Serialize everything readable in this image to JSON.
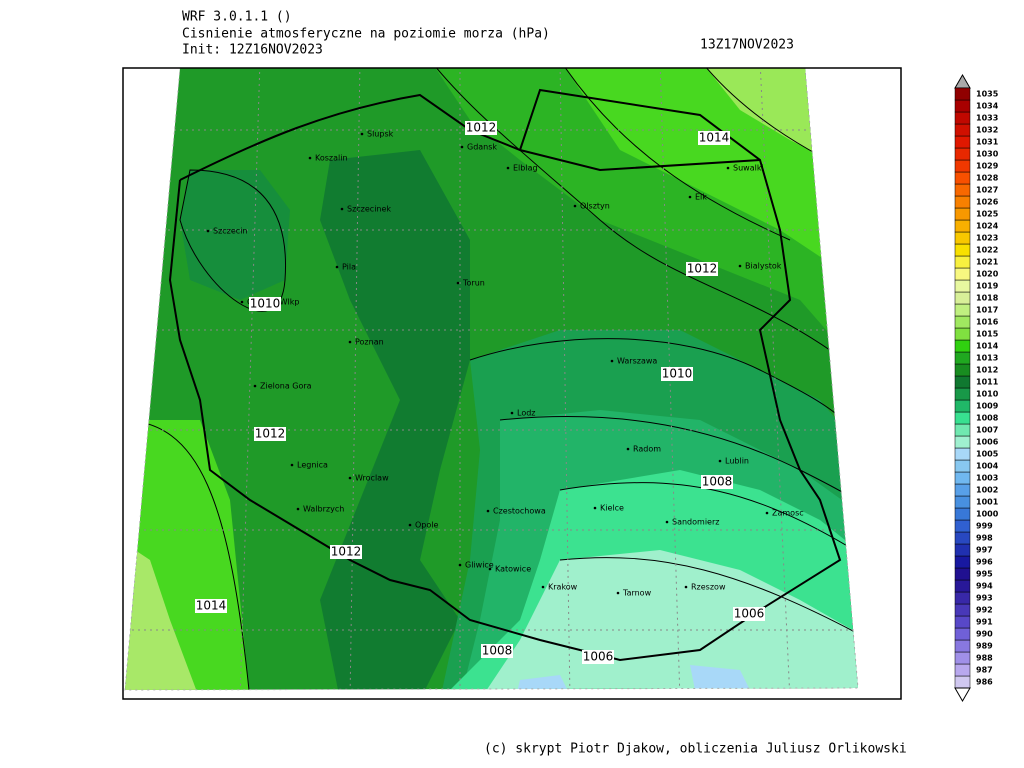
{
  "header": {
    "model": "WRF 3.0.1.1 ()",
    "title": "Cisnienie atmosferyczne na poziomie morza (hPa)",
    "init": "Init: 12Z16NOV2023",
    "valid": "13Z17NOV2023"
  },
  "footer": "(c) skrypt Piotr Djakow, obliczenia Juliusz Orlikowski",
  "cities": [
    "Slupsk",
    "Gdansk",
    "Koszalin",
    "Elblag",
    "Suwalki",
    "Olsztyn",
    "Elk",
    "Szczecinek",
    "Szczecin",
    "Bialystok",
    "Pila",
    "Torun",
    "Gorzow Wlkp",
    "Poznan",
    "Warszawa",
    "Zielona Gora",
    "Lodz",
    "Radom",
    "Lublin",
    "Legnica",
    "Wroclaw",
    "Czestochowa",
    "Kielce",
    "Zamosc",
    "Walbrzych",
    "Opole",
    "Sandomierz",
    "Gliwice",
    "Katowice",
    "Krakow",
    "Tarnow",
    "Rzeszow"
  ],
  "contour_labels": [
    1012,
    1014,
    1012,
    1010,
    1010,
    1012,
    1008,
    1012,
    1014,
    1006,
    1008,
    1006
  ],
  "colorbar": {
    "levels": [
      986,
      987,
      988,
      989,
      990,
      991,
      992,
      993,
      994,
      995,
      996,
      997,
      998,
      999,
      1000,
      1001,
      1002,
      1003,
      1004,
      1005,
      1006,
      1007,
      1008,
      1009,
      1010,
      1011,
      1012,
      1013,
      1014,
      1015,
      1016,
      1017,
      1018,
      1019,
      1020,
      1021,
      1022,
      1023,
      1024,
      1025,
      1026,
      1027,
      1028,
      1029,
      1030,
      1031,
      1032,
      1033,
      1034,
      1035
    ],
    "colors": [
      "#d0c8f0",
      "#b8a8ee",
      "#a090e8",
      "#8878e0",
      "#7060d8",
      "#5848c8",
      "#4838b8",
      "#3828a8",
      "#281898",
      "#201090",
      "#1818a0",
      "#2030b0",
      "#2848c0",
      "#3060d0",
      "#3878d8",
      "#4890e0",
      "#58a0e8",
      "#70b8f0",
      "#88c8f0",
      "#a8d8f8",
      "#a0f0d0",
      "#70e8b0",
      "#38e090",
      "#20b868",
      "#189848",
      "#107830",
      "#188c20",
      "#20a820",
      "#30d010",
      "#80e040",
      "#a0e860",
      "#c0f080",
      "#d8f098",
      "#e8f8a0",
      "#f8f880",
      "#f8f040",
      "#f8e000",
      "#f8c800",
      "#f8b000",
      "#f89800",
      "#f88000",
      "#f86800",
      "#f85000",
      "#f03800",
      "#e82800",
      "#e01800",
      "#d01000",
      "#c00800",
      "#a80000",
      "#900000"
    ]
  }
}
